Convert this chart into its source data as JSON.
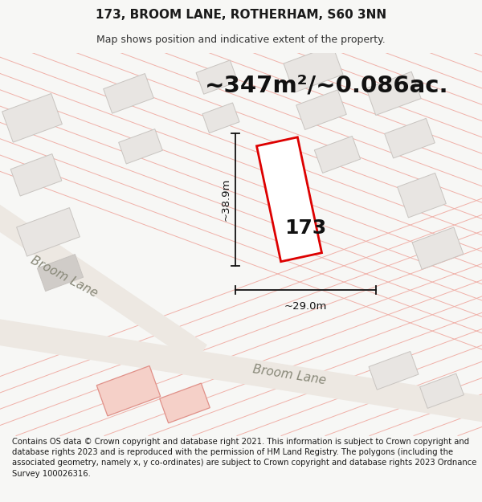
{
  "title_line1": "173, BROOM LANE, ROTHERHAM, S60 3NN",
  "title_line2": "Map shows position and indicative extent of the property.",
  "area_text": "~347m²/~0.086ac.",
  "label_173": "173",
  "dim_height": "~38.9m",
  "dim_width": "~29.0m",
  "road_label1": "Broom Lane",
  "road_label2": "Broom Lane",
  "footer_text": "Contains OS data © Crown copyright and database right 2021. This information is subject to Crown copyright and database rights 2023 and is reproduced with the permission of HM Land Registry. The polygons (including the associated geometry, namely x, y co-ordinates) are subject to Crown copyright and database rights 2023 Ordnance Survey 100026316.",
  "bg_color": "#f7f7f5",
  "map_bg": "#ffffff",
  "building_fill": "#e8e5e2",
  "building_stroke": "#c8c4c0",
  "subject_fill": "#ffffff",
  "subject_stroke": "#dd0000",
  "dim_color": "#111111",
  "boundary_line_color": "#f0b0a8",
  "road_fill": "#ede8e2",
  "road_label_color": "#888878",
  "title_fontsize": 11,
  "subtitle_fontsize": 9,
  "area_fontsize": 21,
  "label_fontsize": 18,
  "dim_fontsize": 9.5,
  "road_label_fontsize": 11,
  "footer_fontsize": 7.2
}
